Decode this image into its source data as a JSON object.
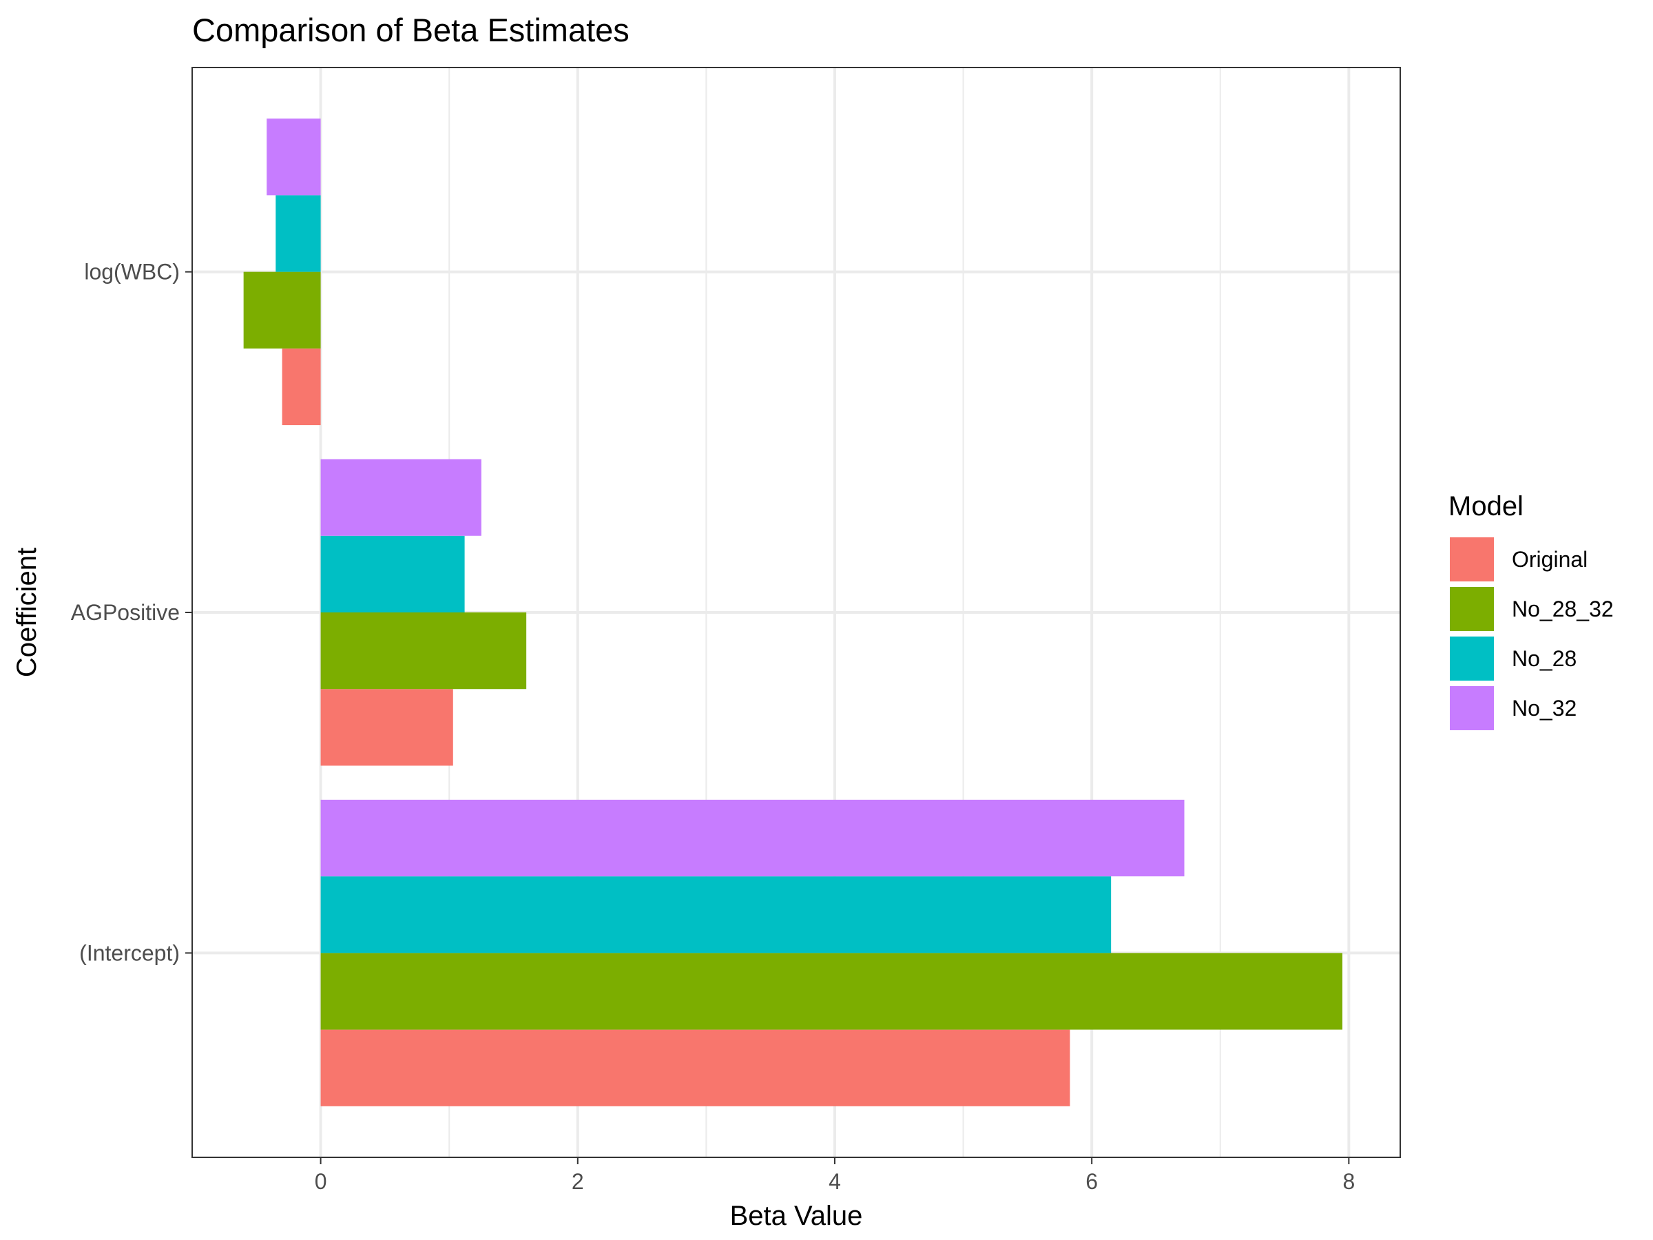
{
  "chart_data": {
    "type": "bar",
    "orientation": "horizontal",
    "title": "Comparison of Beta Estimates",
    "xlabel": "Beta Value",
    "ylabel": "Coefficient",
    "categories": [
      "(Intercept)",
      "AGPositive",
      "log(WBC)"
    ],
    "xlim": [
      -1.0,
      8.4
    ],
    "xticks": [
      0,
      2,
      4,
      6,
      8
    ],
    "grid": true,
    "legend": {
      "title": "Model",
      "position": "right"
    },
    "series": [
      {
        "name": "Original",
        "color": "#F8766D",
        "values": [
          5.83,
          1.03,
          -0.3
        ]
      },
      {
        "name": "No_28_32",
        "color": "#7CAE00",
        "values": [
          7.95,
          1.6,
          -0.6
        ]
      },
      {
        "name": "No_28",
        "color": "#00BFC4",
        "values": [
          6.15,
          1.12,
          -0.35
        ]
      },
      {
        "name": "No_32",
        "color": "#C77CFF",
        "values": [
          6.72,
          1.25,
          -0.42
        ]
      }
    ]
  }
}
